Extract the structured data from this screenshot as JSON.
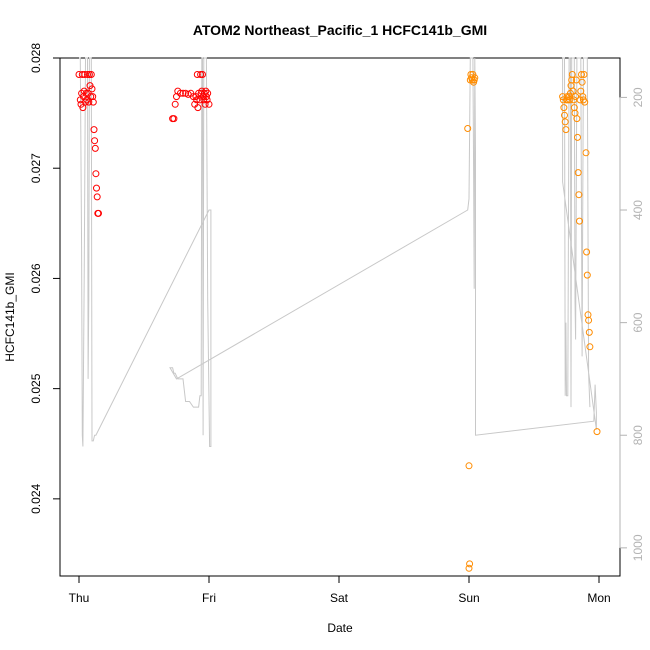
{
  "chart_data": {
    "type": "scatter",
    "title": "ATOM2 Northeast_Pacific_1 HCFC141b_GMI",
    "xlabel": "Date",
    "ylabel": "HCFC141b_GMI",
    "x_ticks": [
      "Thu",
      "Fri",
      "Sat",
      "Sun",
      "Mon"
    ],
    "x_range_days": [
      -0.1,
      4.15
    ],
    "y_ticks": [
      "0.024",
      "0.025",
      "0.026",
      "0.027",
      "0.028"
    ],
    "y_tick_values": [
      0.024,
      0.025,
      0.026,
      0.027,
      0.028
    ],
    "ylim": [
      0.0233,
      0.028
    ],
    "y2_ticks": [
      "200",
      "400",
      "600",
      "800",
      "1000"
    ],
    "y2_tick_values": [
      200,
      400,
      600,
      800,
      1000
    ],
    "y2lim_reversed": [
      1050,
      130
    ],
    "grid": false,
    "colors": {
      "series1": "#ff0000",
      "series2": "#ff8c00",
      "pressure_line": "#c8c8c8",
      "right_axis": "#b3b3b3"
    },
    "series": [
      {
        "color": "#ff0000",
        "points": [
          [
            0.0,
            0.02785
          ],
          [
            0.01,
            0.02762
          ],
          [
            0.015,
            0.02758
          ],
          [
            0.02,
            0.02768
          ],
          [
            0.025,
            0.02785
          ],
          [
            0.03,
            0.02755
          ],
          [
            0.035,
            0.02765
          ],
          [
            0.04,
            0.0277
          ],
          [
            0.045,
            0.02785
          ],
          [
            0.05,
            0.0276
          ],
          [
            0.055,
            0.02768
          ],
          [
            0.06,
            0.02762
          ],
          [
            0.065,
            0.02785
          ],
          [
            0.07,
            0.02768
          ],
          [
            0.075,
            0.0276
          ],
          [
            0.08,
            0.02785
          ],
          [
            0.085,
            0.02775
          ],
          [
            0.09,
            0.02765
          ],
          [
            0.095,
            0.02785
          ],
          [
            0.1,
            0.02772
          ],
          [
            0.105,
            0.02765
          ],
          [
            0.11,
            0.0276
          ],
          [
            0.115,
            0.02735
          ],
          [
            0.12,
            0.02725
          ],
          [
            0.125,
            0.02718
          ],
          [
            0.13,
            0.02695
          ],
          [
            0.135,
            0.02682
          ],
          [
            0.14,
            0.02674
          ],
          [
            0.145,
            0.02659
          ],
          [
            0.15,
            0.02659
          ],
          [
            0.72,
            0.02745
          ],
          [
            0.73,
            0.02745
          ],
          [
            0.74,
            0.02758
          ],
          [
            0.75,
            0.02765
          ],
          [
            0.76,
            0.0277
          ],
          [
            0.78,
            0.02768
          ],
          [
            0.8,
            0.02768
          ],
          [
            0.82,
            0.02768
          ],
          [
            0.84,
            0.02767
          ],
          [
            0.86,
            0.02768
          ],
          [
            0.88,
            0.02765
          ],
          [
            0.89,
            0.02758
          ],
          [
            0.9,
            0.02765
          ],
          [
            0.905,
            0.02762
          ],
          [
            0.91,
            0.02785
          ],
          [
            0.915,
            0.02755
          ],
          [
            0.92,
            0.02768
          ],
          [
            0.93,
            0.02762
          ],
          [
            0.935,
            0.02785
          ],
          [
            0.94,
            0.02768
          ],
          [
            0.945,
            0.0277
          ],
          [
            0.95,
            0.02785
          ],
          [
            0.955,
            0.02765
          ],
          [
            0.96,
            0.02762
          ],
          [
            0.965,
            0.02768
          ],
          [
            0.97,
            0.02758
          ],
          [
            0.975,
            0.0277
          ],
          [
            0.98,
            0.02765
          ],
          [
            0.985,
            0.02762
          ],
          [
            0.99,
            0.02768
          ],
          [
            1.0,
            0.02758
          ]
        ]
      },
      {
        "color": "#ff8c00",
        "points": [
          [
            2.99,
            0.02736
          ],
          [
            3.0,
            0.0243
          ],
          [
            3.005,
            0.02341
          ],
          [
            3.0,
            0.02337
          ],
          [
            3.01,
            0.0278
          ],
          [
            3.015,
            0.02785
          ],
          [
            3.02,
            0.02782
          ],
          [
            3.025,
            0.0278
          ],
          [
            3.03,
            0.02785
          ],
          [
            3.035,
            0.02778
          ],
          [
            3.04,
            0.0278
          ],
          [
            3.045,
            0.02782
          ],
          [
            3.72,
            0.02765
          ],
          [
            3.725,
            0.02762
          ],
          [
            3.73,
            0.02755
          ],
          [
            3.735,
            0.02748
          ],
          [
            3.74,
            0.02742
          ],
          [
            3.745,
            0.02735
          ],
          [
            3.75,
            0.02762
          ],
          [
            3.755,
            0.02765
          ],
          [
            3.76,
            0.02762
          ],
          [
            3.77,
            0.02765
          ],
          [
            3.775,
            0.02762
          ],
          [
            3.78,
            0.02768
          ],
          [
            3.785,
            0.02775
          ],
          [
            3.79,
            0.0278
          ],
          [
            3.795,
            0.02785
          ],
          [
            3.8,
            0.0277
          ],
          [
            3.805,
            0.02762
          ],
          [
            3.81,
            0.02755
          ],
          [
            3.815,
            0.0275
          ],
          [
            3.82,
            0.02765
          ],
          [
            3.825,
            0.0278
          ],
          [
            3.83,
            0.02745
          ],
          [
            3.835,
            0.02728
          ],
          [
            3.84,
            0.02696
          ],
          [
            3.845,
            0.02676
          ],
          [
            3.85,
            0.02652
          ],
          [
            3.855,
            0.02762
          ],
          [
            3.86,
            0.0277
          ],
          [
            3.865,
            0.02785
          ],
          [
            3.87,
            0.02778
          ],
          [
            3.875,
            0.02765
          ],
          [
            3.88,
            0.02762
          ],
          [
            3.885,
            0.02785
          ],
          [
            3.89,
            0.0276
          ],
          [
            3.9,
            0.02714
          ],
          [
            3.905,
            0.02624
          ],
          [
            3.91,
            0.02603
          ],
          [
            3.915,
            0.02567
          ],
          [
            3.92,
            0.02562
          ],
          [
            3.925,
            0.02551
          ],
          [
            3.93,
            0.02538
          ],
          [
            3.985,
            0.02461
          ]
        ]
      }
    ],
    "pressure_line": [
      [
        0.0,
        130
      ],
      [
        0.01,
        130
      ],
      [
        0.02,
        470
      ],
      [
        0.025,
        800
      ],
      [
        0.03,
        820
      ],
      [
        0.04,
        520
      ],
      [
        0.05,
        130
      ],
      [
        0.06,
        130
      ],
      [
        0.065,
        130
      ],
      [
        0.07,
        700
      ],
      [
        0.075,
        560
      ],
      [
        0.08,
        130
      ],
      [
        0.09,
        130
      ],
      [
        0.095,
        130
      ],
      [
        0.1,
        810
      ],
      [
        0.11,
        810
      ],
      [
        0.12,
        800
      ],
      [
        0.13,
        800
      ],
      [
        1.0,
        400
      ],
      [
        1.015,
        400
      ],
      [
        1.015,
        820
      ],
      [
        1.005,
        820
      ],
      [
        0.99,
        560
      ],
      [
        0.98,
        130
      ],
      [
        0.96,
        130
      ],
      [
        0.955,
        800
      ],
      [
        0.95,
        130
      ],
      [
        0.945,
        130
      ],
      [
        0.94,
        730
      ],
      [
        0.93,
        730
      ],
      [
        0.92,
        750
      ],
      [
        0.9,
        750
      ],
      [
        0.88,
        750
      ],
      [
        0.85,
        740
      ],
      [
        0.83,
        740
      ],
      [
        0.82,
        740
      ],
      [
        0.8,
        700
      ],
      [
        0.78,
        700
      ],
      [
        0.76,
        700
      ],
      [
        0.74,
        690
      ],
      [
        0.73,
        690
      ],
      [
        0.72,
        680
      ],
      [
        0.7,
        680
      ],
      [
        0.75,
        700
      ],
      [
        2.99,
        400
      ],
      [
        3.0,
        380
      ],
      [
        3.01,
        130
      ],
      [
        3.02,
        130
      ],
      [
        3.03,
        130
      ],
      [
        3.035,
        330
      ],
      [
        3.04,
        540
      ],
      [
        3.045,
        130
      ],
      [
        3.05,
        300
      ],
      [
        3.05,
        800
      ],
      [
        3.96,
        775
      ],
      [
        3.97,
        710
      ],
      [
        3.98,
        760
      ],
      [
        3.98,
        790
      ],
      [
        3.72,
        350
      ],
      [
        3.72,
        130
      ],
      [
        3.735,
        130
      ],
      [
        3.74,
        730
      ],
      [
        3.745,
        600
      ],
      [
        3.75,
        730
      ],
      [
        3.76,
        730
      ],
      [
        3.77,
        130
      ],
      [
        3.78,
        130
      ],
      [
        3.785,
        750
      ],
      [
        3.79,
        130
      ],
      [
        3.8,
        130
      ],
      [
        3.81,
        130
      ],
      [
        3.815,
        560
      ],
      [
        3.82,
        630
      ],
      [
        3.83,
        130
      ],
      [
        3.84,
        130
      ],
      [
        3.85,
        130
      ],
      [
        3.86,
        130
      ],
      [
        3.87,
        660
      ],
      [
        3.88,
        130
      ],
      [
        3.89,
        130
      ],
      [
        3.9,
        130
      ],
      [
        3.91,
        130
      ],
      [
        3.92,
        690
      ],
      [
        3.93,
        750
      ]
    ]
  }
}
